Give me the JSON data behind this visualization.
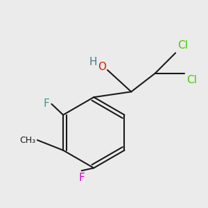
{
  "bg_color": "#ebebeb",
  "bond_color": "#1a1a1a",
  "bond_width": 1.5,
  "labels": {
    "F_top": {
      "text": "F",
      "color": "#3a9a8a",
      "fontsize": 11
    },
    "F_bot": {
      "text": "F",
      "color": "#dd00cc",
      "fontsize": 11
    },
    "Me": {
      "text": "",
      "color": "#1a1a1a",
      "fontsize": 10
    },
    "O": {
      "text": "O",
      "color": "#cc2200",
      "fontsize": 11
    },
    "H": {
      "text": "H",
      "color": "#4a7a8a",
      "fontsize": 11
    },
    "Cl1": {
      "text": "Cl",
      "color": "#44cc00",
      "fontsize": 11
    },
    "Cl2": {
      "text": "Cl",
      "color": "#44cc00",
      "fontsize": 11
    }
  }
}
